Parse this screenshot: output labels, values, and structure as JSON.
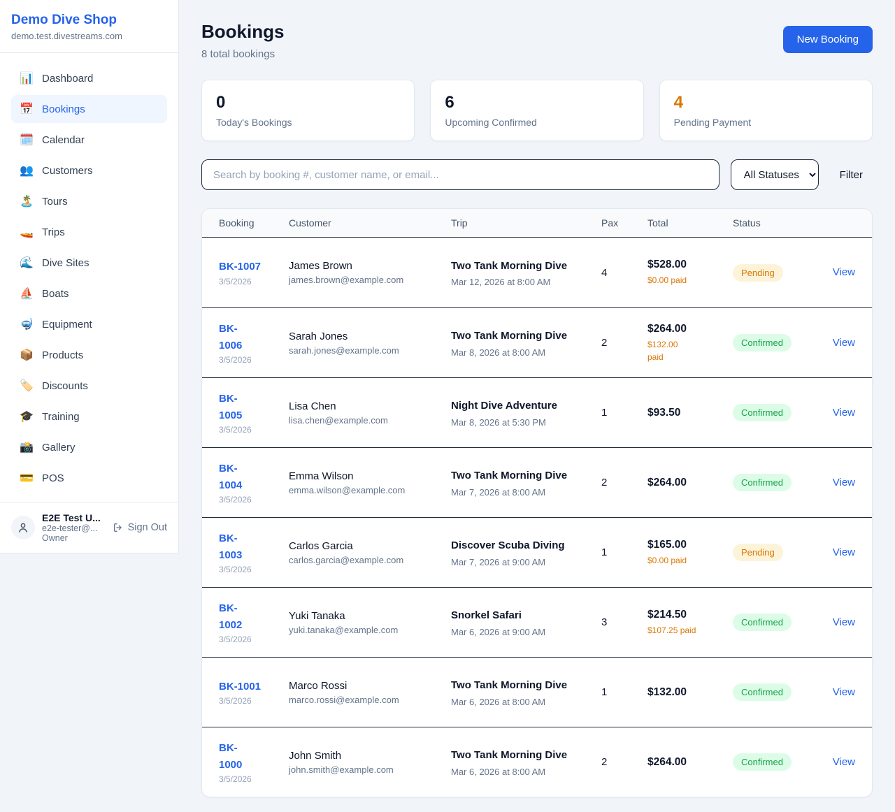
{
  "sidebar": {
    "shop_name": "Demo Dive Shop",
    "shop_domain": "demo.test.divestreams.com",
    "items": [
      {
        "label": "Dashboard",
        "icon": "📊",
        "active": false
      },
      {
        "label": "Bookings",
        "icon": "📅",
        "active": true
      },
      {
        "label": "Calendar",
        "icon": "🗓️",
        "active": false
      },
      {
        "label": "Customers",
        "icon": "👥",
        "active": false
      },
      {
        "label": "Tours",
        "icon": "🏝️",
        "active": false
      },
      {
        "label": "Trips",
        "icon": "🚤",
        "active": false
      },
      {
        "label": "Dive Sites",
        "icon": "🌊",
        "active": false
      },
      {
        "label": "Boats",
        "icon": "⛵",
        "active": false
      },
      {
        "label": "Equipment",
        "icon": "🤿",
        "active": false
      },
      {
        "label": "Products",
        "icon": "📦",
        "active": false
      },
      {
        "label": "Discounts",
        "icon": "🏷️",
        "active": false
      },
      {
        "label": "Training",
        "icon": "🎓",
        "active": false
      },
      {
        "label": "Gallery",
        "icon": "📸",
        "active": false
      },
      {
        "label": "POS",
        "icon": "💳",
        "active": false
      }
    ],
    "user": {
      "name": "E2E Test U...",
      "email": "e2e-tester@...",
      "role": "Owner",
      "sign_out_label": "Sign Out"
    }
  },
  "header": {
    "title": "Bookings",
    "subtitle": "8 total bookings",
    "new_booking_label": "New Booking"
  },
  "stats": [
    {
      "value": "0",
      "label": "Today's Bookings",
      "value_color": "#0f172a"
    },
    {
      "value": "6",
      "label": "Upcoming Confirmed",
      "value_color": "#0f172a"
    },
    {
      "value": "4",
      "label": "Pending Payment",
      "value_color": "#d97706"
    }
  ],
  "controls": {
    "search_placeholder": "Search by booking #, customer name, or email...",
    "status_filter_value": "All Statuses",
    "filter_label": "Filter"
  },
  "table": {
    "columns": [
      "Booking",
      "Customer",
      "Trip",
      "Pax",
      "Total",
      "Status",
      ""
    ],
    "view_label": "View",
    "rows": [
      {
        "id": "BK-1007",
        "date": "3/5/2026",
        "customer": "James Brown",
        "email": "james.brown@example.com",
        "trip": "Two Tank Morning Dive",
        "trip_datetime": "Mar 12, 2026 at 8:00 AM",
        "pax": "4",
        "total": "$528.00",
        "paid": "$0.00 paid",
        "status": "Pending"
      },
      {
        "id": "BK-\n1006",
        "date": "3/5/2026",
        "customer": "Sarah Jones",
        "email": "sarah.jones@example.com",
        "trip": "Two Tank Morning Dive",
        "trip_datetime": "Mar 8, 2026 at 8:00 AM",
        "pax": "2",
        "total": "$264.00",
        "paid": "$132.00\npaid",
        "status": "Confirmed"
      },
      {
        "id": "BK-\n1005",
        "date": "3/5/2026",
        "customer": "Lisa Chen",
        "email": "lisa.chen@example.com",
        "trip": "Night Dive Adventure",
        "trip_datetime": "Mar 8, 2026 at 5:30 PM",
        "pax": "1",
        "total": "$93.50",
        "paid": "",
        "status": "Confirmed"
      },
      {
        "id": "BK-\n1004",
        "date": "3/5/2026",
        "customer": "Emma Wilson",
        "email": "emma.wilson@example.com",
        "trip": "Two Tank Morning Dive",
        "trip_datetime": "Mar 7, 2026 at 8:00 AM",
        "pax": "2",
        "total": "$264.00",
        "paid": "",
        "status": "Confirmed"
      },
      {
        "id": "BK-\n1003",
        "date": "3/5/2026",
        "customer": "Carlos Garcia",
        "email": "carlos.garcia@example.com",
        "trip": "Discover Scuba Diving",
        "trip_datetime": "Mar 7, 2026 at 9:00 AM",
        "pax": "1",
        "total": "$165.00",
        "paid": "$0.00 paid",
        "status": "Pending"
      },
      {
        "id": "BK-\n1002",
        "date": "3/5/2026",
        "customer": "Yuki Tanaka",
        "email": "yuki.tanaka@example.com",
        "trip": "Snorkel Safari",
        "trip_datetime": "Mar 6, 2026 at 9:00 AM",
        "pax": "3",
        "total": "$214.50",
        "paid": "$107.25 paid",
        "status": "Confirmed"
      },
      {
        "id": "BK-1001",
        "date": "3/5/2026",
        "customer": "Marco Rossi",
        "email": "marco.rossi@example.com",
        "trip": "Two Tank Morning Dive",
        "trip_datetime": "Mar 6, 2026 at 8:00 AM",
        "pax": "1",
        "total": "$132.00",
        "paid": "",
        "status": "Confirmed"
      },
      {
        "id": "BK-\n1000",
        "date": "3/5/2026",
        "customer": "John Smith",
        "email": "john.smith@example.com",
        "trip": "Two Tank Morning Dive",
        "trip_datetime": "Mar 6, 2026 at 8:00 AM",
        "pax": "2",
        "total": "$264.00",
        "paid": "",
        "status": "Confirmed"
      }
    ]
  },
  "colors": {
    "accent": "#2563eb",
    "pending_text": "#d97706",
    "pending_bg": "#fdf3d9",
    "confirmed_text": "#16a34a",
    "confirmed_bg": "#dcfce7"
  }
}
